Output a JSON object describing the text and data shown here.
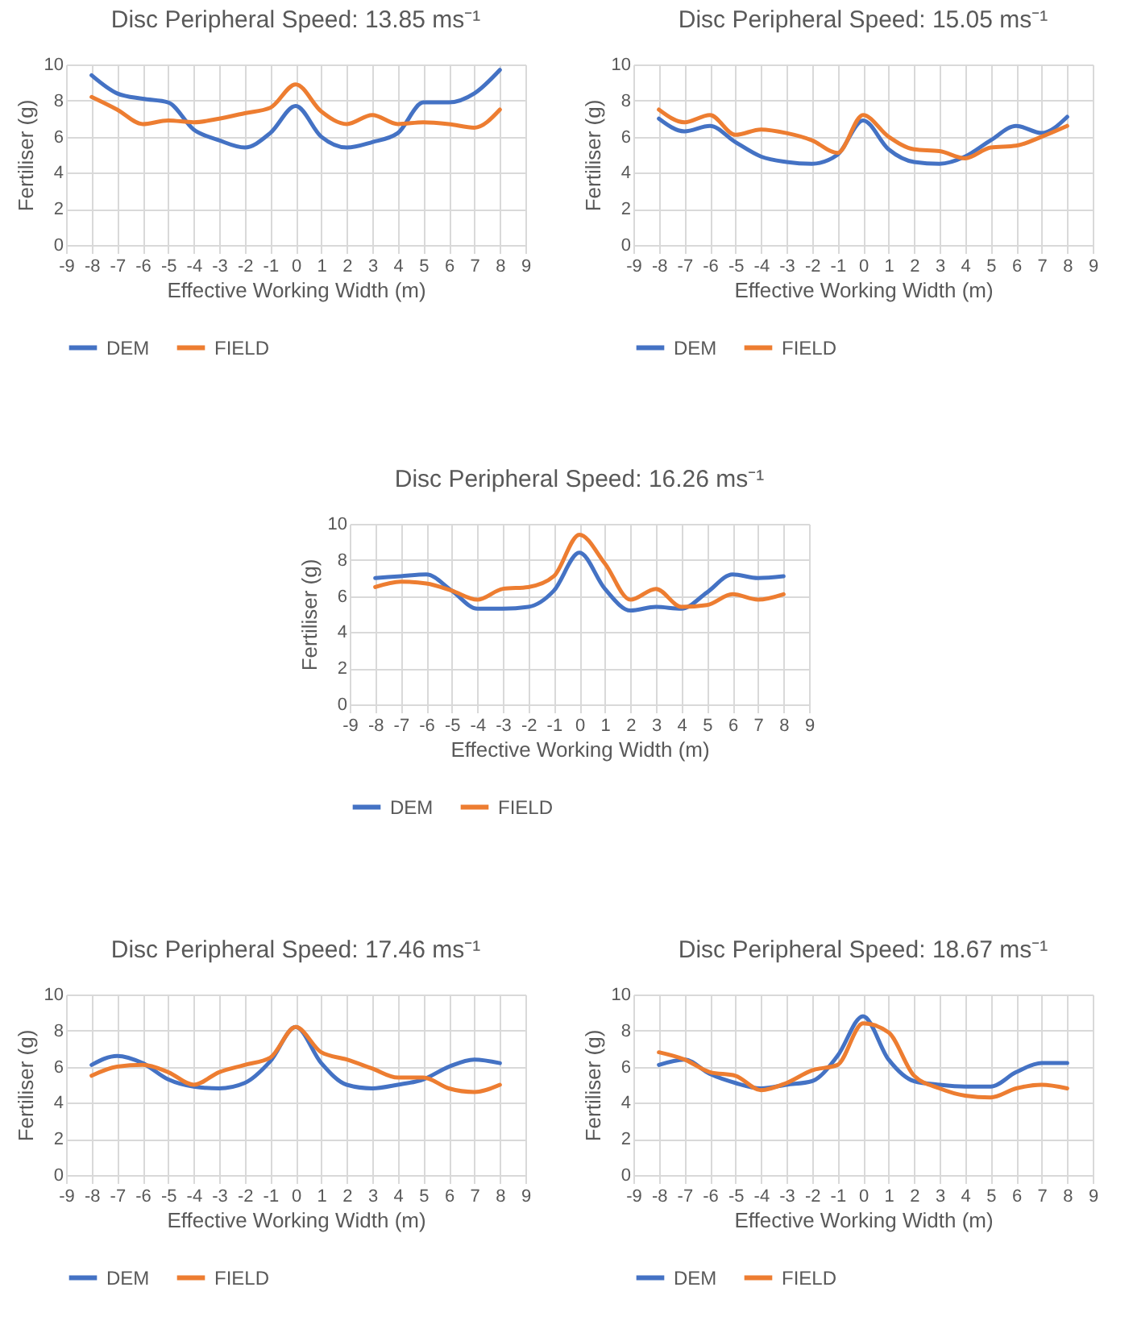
{
  "chart_data": [
    {
      "type": "line",
      "title": "Disc Peripheral Speed: 13.85 ms⁻¹",
      "xlabel": "Effective Working Width (m)",
      "ylabel": "Fertiliser (g)",
      "x": [
        -8,
        -7,
        -6,
        -5,
        -4,
        -3,
        -2,
        -1,
        0,
        1,
        2,
        3,
        4,
        5,
        6,
        7,
        8
      ],
      "xlim": [
        -9,
        9
      ],
      "xticks": [
        -9,
        -8,
        -7,
        -6,
        -5,
        -4,
        -3,
        -2,
        -1,
        0,
        1,
        2,
        3,
        4,
        5,
        6,
        7,
        8,
        9
      ],
      "ylim": [
        0,
        10
      ],
      "yticks": [
        0,
        2,
        4,
        6,
        8,
        10
      ],
      "grid": true,
      "legend": "bottom",
      "marker": "none",
      "line_style": "solid",
      "series": [
        {
          "name": "DEM",
          "color": "#4472c4",
          "values": [
            9.4,
            8.4,
            8.1,
            7.9,
            6.4,
            5.8,
            5.4,
            6.2,
            7.7,
            6.0,
            5.4,
            5.7,
            6.2,
            7.9,
            7.9,
            8.4,
            9.7
          ]
        },
        {
          "name": "FIELD",
          "color": "#ed7d31",
          "values": [
            8.2,
            7.5,
            6.7,
            6.9,
            6.8,
            7.0,
            7.3,
            7.6,
            8.9,
            7.4,
            6.7,
            7.2,
            6.7,
            6.8,
            6.7,
            6.5,
            7.5
          ]
        }
      ]
    },
    {
      "type": "line",
      "title": "Disc Peripheral Speed: 15.05 ms⁻¹",
      "xlabel": "Effective Working Width (m)",
      "ylabel": "Fertiliser (g)",
      "x": [
        -8,
        -7,
        -6,
        -5,
        -4,
        -3,
        -2,
        -1,
        0,
        1,
        2,
        3,
        4,
        5,
        6,
        7,
        8
      ],
      "xlim": [
        -9,
        9
      ],
      "xticks": [
        -9,
        -8,
        -7,
        -6,
        -5,
        -4,
        -3,
        -2,
        -1,
        0,
        1,
        2,
        3,
        4,
        5,
        6,
        7,
        8,
        9
      ],
      "ylim": [
        0,
        10
      ],
      "yticks": [
        0,
        2,
        4,
        6,
        8,
        10
      ],
      "grid": true,
      "legend": "bottom",
      "marker": "none",
      "line_style": "solid",
      "series": [
        {
          "name": "DEM",
          "color": "#4472c4",
          "values": [
            7.0,
            6.3,
            6.6,
            5.7,
            4.9,
            4.6,
            4.5,
            5.0,
            6.9,
            5.3,
            4.6,
            4.5,
            4.9,
            5.8,
            6.6,
            6.2,
            7.1
          ]
        },
        {
          "name": "FIELD",
          "color": "#ed7d31",
          "values": [
            7.5,
            6.8,
            7.2,
            6.1,
            6.4,
            6.2,
            5.8,
            5.1,
            7.2,
            6.0,
            5.3,
            5.2,
            4.8,
            5.4,
            5.5,
            6.0,
            6.6
          ]
        }
      ]
    },
    {
      "type": "line",
      "title": "Disc Peripheral Speed: 16.26 ms⁻¹",
      "xlabel": "Effective Working Width (m)",
      "ylabel": "Fertiliser (g)",
      "x": [
        -8,
        -7,
        -6,
        -5,
        -4,
        -3,
        -2,
        -1,
        0,
        1,
        2,
        3,
        4,
        5,
        6,
        7,
        8
      ],
      "xlim": [
        -9,
        9
      ],
      "xticks": [
        -9,
        -8,
        -7,
        -6,
        -5,
        -4,
        -3,
        -2,
        -1,
        0,
        1,
        2,
        3,
        4,
        5,
        6,
        7,
        8,
        9
      ],
      "ylim": [
        0,
        10
      ],
      "yticks": [
        0,
        2,
        4,
        6,
        8,
        10
      ],
      "grid": true,
      "legend": "bottom",
      "marker": "none",
      "line_style": "solid",
      "series": [
        {
          "name": "DEM",
          "color": "#4472c4",
          "values": [
            7.0,
            7.1,
            7.2,
            6.3,
            5.3,
            5.3,
            5.4,
            6.3,
            8.4,
            6.4,
            5.2,
            5.4,
            5.3,
            6.2,
            7.2,
            7.0,
            7.1
          ]
        },
        {
          "name": "FIELD",
          "color": "#ed7d31",
          "values": [
            6.5,
            6.8,
            6.7,
            6.3,
            5.8,
            6.4,
            6.5,
            7.1,
            9.4,
            7.8,
            5.8,
            6.4,
            5.4,
            5.5,
            6.1,
            5.8,
            6.1
          ]
        }
      ]
    },
    {
      "type": "line",
      "title": "Disc Peripheral Speed: 17.46 ms⁻¹",
      "xlabel": "Effective Working Width (m)",
      "ylabel": "Fertiliser (g)",
      "x": [
        -8,
        -7,
        -6,
        -5,
        -4,
        -3,
        -2,
        -1,
        0,
        1,
        2,
        3,
        4,
        5,
        6,
        7,
        8
      ],
      "xlim": [
        -9,
        9
      ],
      "xticks": [
        -9,
        -8,
        -7,
        -6,
        -5,
        -4,
        -3,
        -2,
        -1,
        0,
        1,
        2,
        3,
        4,
        5,
        6,
        7,
        8,
        9
      ],
      "ylim": [
        0,
        10
      ],
      "yticks": [
        0,
        2,
        4,
        6,
        8,
        10
      ],
      "grid": true,
      "legend": "bottom",
      "marker": "none",
      "line_style": "solid",
      "series": [
        {
          "name": "DEM",
          "color": "#4472c4",
          "values": [
            6.1,
            6.6,
            6.2,
            5.3,
            4.9,
            4.8,
            5.1,
            6.3,
            8.2,
            6.2,
            5.0,
            4.8,
            5.0,
            5.3,
            6.0,
            6.4,
            6.2
          ]
        },
        {
          "name": "FIELD",
          "color": "#ed7d31",
          "values": [
            5.5,
            6.0,
            6.1,
            5.7,
            5.0,
            5.7,
            6.1,
            6.5,
            8.2,
            6.8,
            6.4,
            5.9,
            5.4,
            5.4,
            4.8,
            4.6,
            5.0
          ]
        }
      ]
    },
    {
      "type": "line",
      "title": "Disc Peripheral Speed: 18.67 ms⁻¹",
      "xlabel": "Effective Working Width (m)",
      "ylabel": "Fertiliser (g)",
      "x": [
        -8,
        -7,
        -6,
        -5,
        -4,
        -3,
        -2,
        -1,
        0,
        1,
        2,
        3,
        4,
        5,
        6,
        7,
        8
      ],
      "xlim": [
        -9,
        9
      ],
      "xticks": [
        -9,
        -8,
        -7,
        -6,
        -5,
        -4,
        -3,
        -2,
        -1,
        0,
        1,
        2,
        3,
        4,
        5,
        6,
        7,
        8,
        9
      ],
      "ylim": [
        0,
        10
      ],
      "yticks": [
        0,
        2,
        4,
        6,
        8,
        10
      ],
      "grid": true,
      "legend": "bottom",
      "marker": "none",
      "line_style": "solid",
      "series": [
        {
          "name": "DEM",
          "color": "#4472c4",
          "values": [
            6.1,
            6.4,
            5.6,
            5.1,
            4.8,
            5.0,
            5.2,
            6.6,
            8.8,
            6.4,
            5.2,
            5.0,
            4.9,
            4.9,
            5.7,
            6.2,
            6.2
          ]
        },
        {
          "name": "FIELD",
          "color": "#ed7d31",
          "values": [
            6.8,
            6.4,
            5.7,
            5.5,
            4.7,
            5.1,
            5.8,
            6.1,
            8.4,
            7.9,
            5.5,
            4.8,
            4.4,
            4.3,
            4.8,
            5.0,
            4.8
          ]
        }
      ]
    }
  ]
}
